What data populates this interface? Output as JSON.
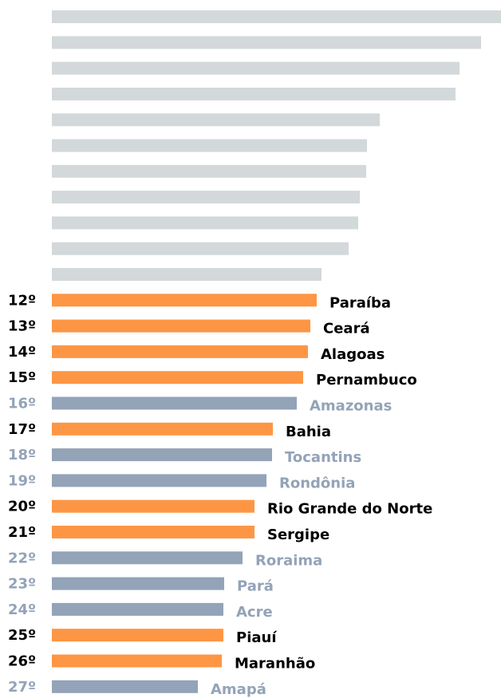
{
  "chart_data": {
    "type": "bar",
    "orientation": "horizontal",
    "categories": [
      null,
      null,
      null,
      null,
      null,
      null,
      null,
      null,
      null,
      null,
      null,
      "Paraíba",
      "Ceará",
      "Alagoas",
      "Pernambuco",
      "Amazonas",
      "Bahia",
      "Tocantins",
      "Rondônia",
      "Rio Grande do Norte",
      "Sergipe",
      "Roraima",
      "Pará",
      "Acre",
      "Piauí",
      "Maranhão",
      "Amapá"
    ],
    "ranks": [
      null,
      null,
      null,
      null,
      null,
      null,
      null,
      null,
      null,
      null,
      null,
      "12º",
      "13º",
      "14º",
      "15º",
      "16º",
      "17º",
      "18º",
      "19º",
      "20º",
      "21º",
      "22º",
      "23º",
      "24º",
      "25º",
      "26º",
      "27º"
    ],
    "values": [
      563,
      538,
      511,
      506,
      411,
      395,
      394,
      386,
      384,
      372,
      338,
      332,
      324,
      321,
      315,
      307,
      277,
      276,
      269,
      254,
      254,
      239,
      216,
      215,
      215,
      213,
      183
    ],
    "colors": [
      "#d3d8da",
      "#d3d8da",
      "#d3d8da",
      "#d3d8da",
      "#d3d8da",
      "#d3d8da",
      "#d3d8da",
      "#d3d8da",
      "#d3d8da",
      "#d3d8da",
      "#d3d8da",
      "#fd9644",
      "#fd9644",
      "#fd9644",
      "#fd9644",
      "#93a3b8",
      "#fd9644",
      "#93a3b8",
      "#93a3b8",
      "#fd9644",
      "#fd9644",
      "#93a3b8",
      "#93a3b8",
      "#93a3b8",
      "#fd9644",
      "#fd9644",
      "#93a3b8"
    ],
    "label_colors": [
      null,
      null,
      null,
      null,
      null,
      null,
      null,
      null,
      null,
      null,
      null,
      "#000000",
      "#000000",
      "#000000",
      "#000000",
      "#93a3b8",
      "#000000",
      "#93a3b8",
      "#93a3b8",
      "#000000",
      "#000000",
      "#93a3b8",
      "#93a3b8",
      "#93a3b8",
      "#000000",
      "#000000",
      "#93a3b8"
    ],
    "xlim": [
      0,
      563
    ]
  }
}
